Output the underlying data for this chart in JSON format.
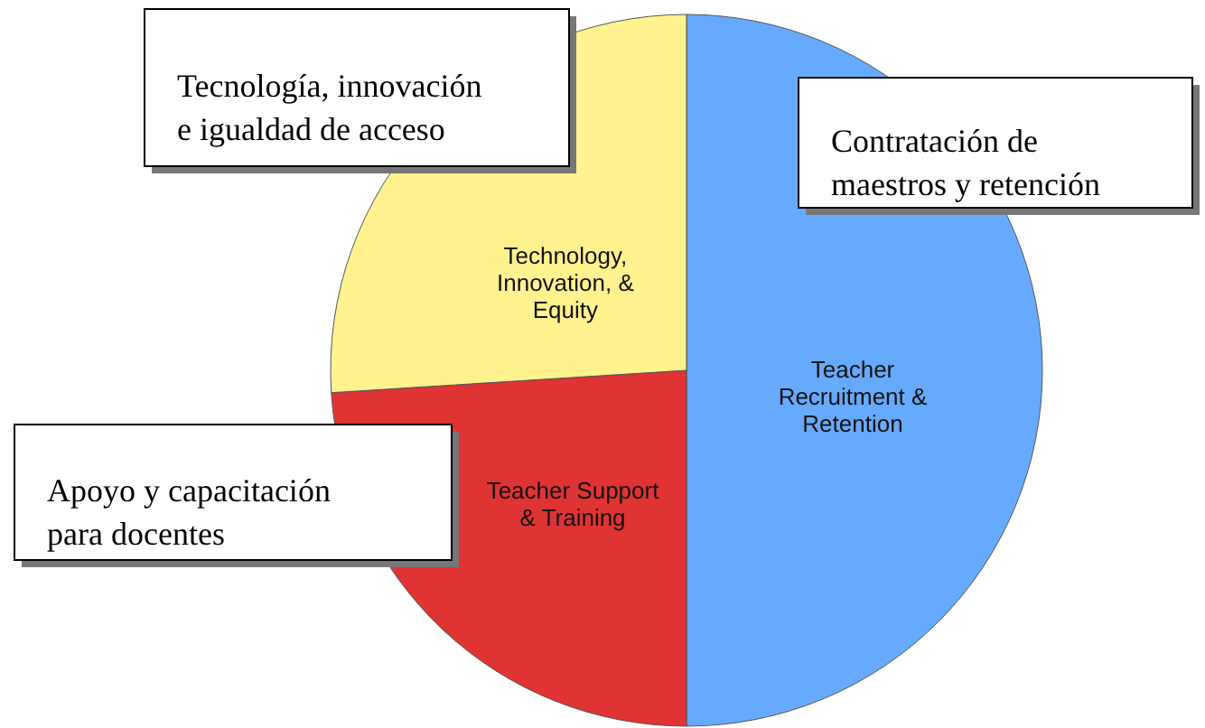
{
  "chart_data": {
    "type": "pie",
    "categories": [
      "Teacher\nRecruitment &\nRetention",
      "Teacher Support\n& Training",
      "Technology,\nInnovation, &\nEquity"
    ],
    "values": [
      50,
      24,
      26
    ],
    "colors": [
      "#66aaff",
      "#e03333",
      "#fff28f"
    ],
    "annotations": [
      "Tecnología, innovación\ne  igualdad de acceso",
      "Contratación de\nmaestros y retención",
      "Apoyo y capacitación\npara docentes"
    ]
  }
}
